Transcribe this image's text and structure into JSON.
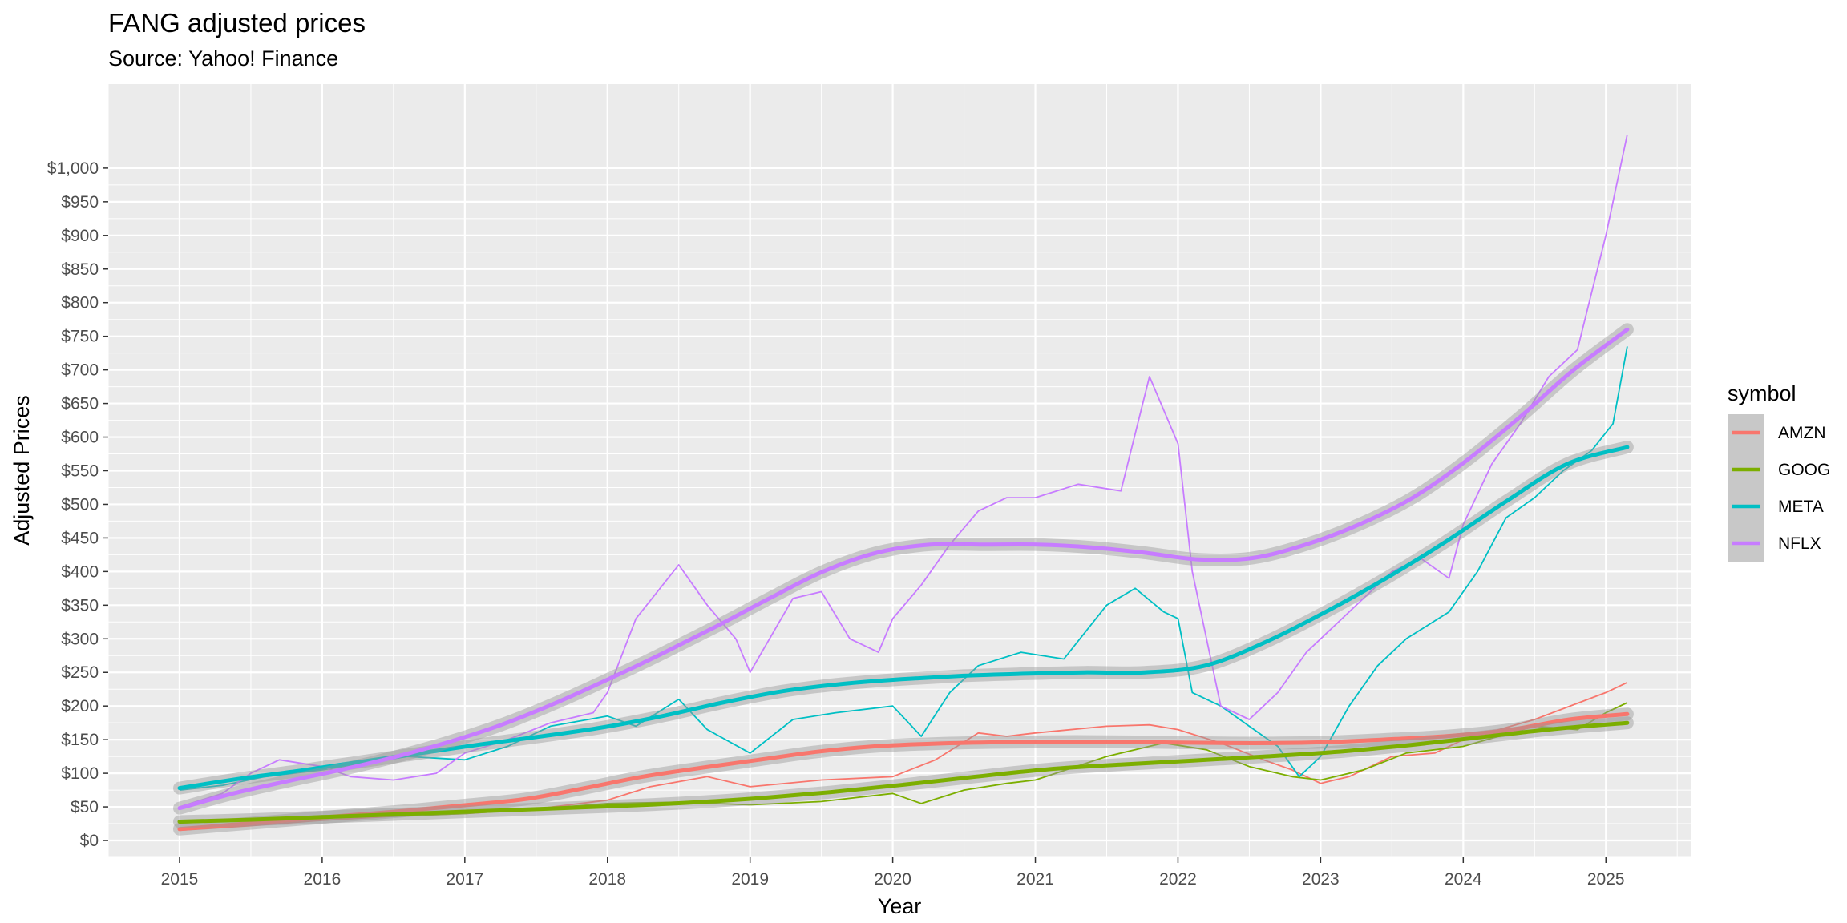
{
  "chart_data": {
    "type": "line",
    "title": "FANG adjusted prices",
    "subtitle": "Source: Yahoo! Finance",
    "xlabel": "Year",
    "ylabel": "Adjusted Prices",
    "xlim": [
      2014.5,
      2025.6
    ],
    "ylim": [
      -25,
      1125
    ],
    "x_ticks": [
      "2015",
      "2016",
      "2017",
      "2018",
      "2019",
      "2020",
      "2021",
      "2022",
      "2023",
      "2024",
      "2025"
    ],
    "y_ticks": [
      0,
      50,
      100,
      150,
      200,
      250,
      300,
      350,
      400,
      450,
      500,
      550,
      600,
      650,
      700,
      750,
      800,
      850,
      900,
      950,
      1000
    ],
    "y_tick_labels": [
      "$0",
      "$50",
      "$100",
      "$150",
      "$200",
      "$250",
      "$300",
      "$350",
      "$400",
      "$450",
      "$500",
      "$550",
      "$600",
      "$650",
      "$700",
      "$750",
      "$800",
      "$850",
      "$900",
      "$950",
      "$1,000"
    ],
    "legend": {
      "title": "symbol",
      "position": "right"
    },
    "grid": true,
    "series": [
      {
        "name": "AMZN",
        "color": "#F8766D",
        "x": [
          2015.0,
          2015.5,
          2016.0,
          2016.5,
          2017.0,
          2017.5,
          2018.0,
          2018.3,
          2018.7,
          2019.0,
          2019.5,
          2020.0,
          2020.3,
          2020.6,
          2020.8,
          2021.0,
          2021.5,
          2021.8,
          2022.0,
          2022.3,
          2022.6,
          2022.8,
          2023.0,
          2023.2,
          2023.5,
          2023.8,
          2024.0,
          2024.5,
          2025.0,
          2025.15
        ],
        "values": [
          15,
          22,
          30,
          36,
          40,
          47,
          60,
          80,
          95,
          80,
          90,
          95,
          120,
          160,
          155,
          160,
          170,
          172,
          165,
          145,
          120,
          105,
          85,
          95,
          125,
          130,
          150,
          180,
          220,
          235
        ],
        "trend": [
          17,
          24,
          31,
          38,
          45,
          53,
          62,
          78,
          95,
          108,
          120,
          132,
          140,
          144,
          146,
          147,
          147,
          146,
          145,
          145,
          147,
          151,
          156,
          165,
          180,
          188
        ]
      },
      {
        "name": "GOOG",
        "color": "#7CAE00",
        "x": [
          2015.0,
          2015.5,
          2016.0,
          2016.5,
          2017.0,
          2017.5,
          2018.0,
          2018.5,
          2019.0,
          2019.5,
          2020.0,
          2020.2,
          2020.5,
          2020.8,
          2021.0,
          2021.5,
          2021.9,
          2022.2,
          2022.5,
          2022.8,
          2023.0,
          2023.3,
          2023.6,
          2024.0,
          2024.5,
          2024.8,
          2025.0,
          2025.15
        ],
        "values": [
          26,
          30,
          37,
          36,
          40,
          47,
          55,
          57,
          53,
          58,
          70,
          55,
          75,
          85,
          90,
          125,
          145,
          135,
          110,
          95,
          90,
          105,
          130,
          140,
          170,
          165,
          190,
          205
        ],
        "trend": [
          28,
          31,
          35,
          39,
          43,
          47,
          51,
          56,
          63,
          72,
          83,
          95,
          106,
          113,
          119,
          125,
          132,
          142,
          154,
          166,
          175
        ]
      },
      {
        "name": "META",
        "color": "#00BFC4",
        "x": [
          2015.0,
          2015.3,
          2015.6,
          2016.0,
          2016.3,
          2016.6,
          2017.0,
          2017.3,
          2017.6,
          2018.0,
          2018.2,
          2018.5,
          2018.7,
          2019.0,
          2019.3,
          2019.6,
          2020.0,
          2020.2,
          2020.4,
          2020.6,
          2020.9,
          2021.2,
          2021.5,
          2021.7,
          2021.9,
          2022.0,
          2022.1,
          2022.3,
          2022.5,
          2022.7,
          2022.85,
          2023.0,
          2023.2,
          2023.4,
          2023.6,
          2023.9,
          2024.1,
          2024.3,
          2024.5,
          2024.7,
          2024.9,
          2025.05,
          2025.15
        ],
        "values": [
          75,
          82,
          95,
          105,
          115,
          125,
          120,
          140,
          170,
          185,
          170,
          210,
          165,
          130,
          180,
          190,
          200,
          155,
          220,
          260,
          280,
          270,
          350,
          375,
          340,
          330,
          220,
          200,
          170,
          140,
          95,
          125,
          200,
          260,
          300,
          340,
          400,
          480,
          510,
          550,
          580,
          620,
          735
        ],
        "trend": [
          78,
          92,
          104,
          117,
          130,
          143,
          155,
          168,
          185,
          205,
          222,
          233,
          240,
          245,
          248,
          250,
          250,
          260,
          295,
          340,
          390,
          445,
          505,
          560,
          585
        ]
      },
      {
        "name": "NFLX",
        "color": "#C77CFF",
        "x": [
          2015.0,
          2015.3,
          2015.5,
          2015.7,
          2016.0,
          2016.2,
          2016.5,
          2016.8,
          2017.0,
          2017.3,
          2017.6,
          2017.9,
          2018.0,
          2018.2,
          2018.5,
          2018.7,
          2018.9,
          2019.0,
          2019.3,
          2019.5,
          2019.7,
          2019.9,
          2020.0,
          2020.2,
          2020.4,
          2020.6,
          2020.8,
          2021.0,
          2021.3,
          2021.6,
          2021.8,
          2022.0,
          2022.1,
          2022.3,
          2022.5,
          2022.7,
          2022.9,
          2023.1,
          2023.3,
          2023.5,
          2023.7,
          2023.9,
          2024.0,
          2024.2,
          2024.4,
          2024.6,
          2024.8,
          2025.0,
          2025.1,
          2025.15
        ],
        "values": [
          50,
          70,
          100,
          120,
          110,
          95,
          90,
          100,
          130,
          150,
          175,
          190,
          220,
          330,
          410,
          350,
          300,
          250,
          360,
          370,
          300,
          280,
          330,
          380,
          440,
          490,
          510,
          510,
          530,
          520,
          690,
          590,
          400,
          200,
          180,
          220,
          280,
          320,
          360,
          400,
          420,
          390,
          470,
          560,
          620,
          690,
          730,
          900,
          1000,
          1050
        ],
        "trend": [
          48,
          70,
          88,
          105,
          124,
          146,
          172,
          204,
          240,
          278,
          318,
          360,
          400,
          428,
          440,
          440,
          440,
          436,
          428,
          418,
          420,
          440,
          470,
          510,
          565,
          630,
          700,
          760
        ]
      }
    ]
  }
}
